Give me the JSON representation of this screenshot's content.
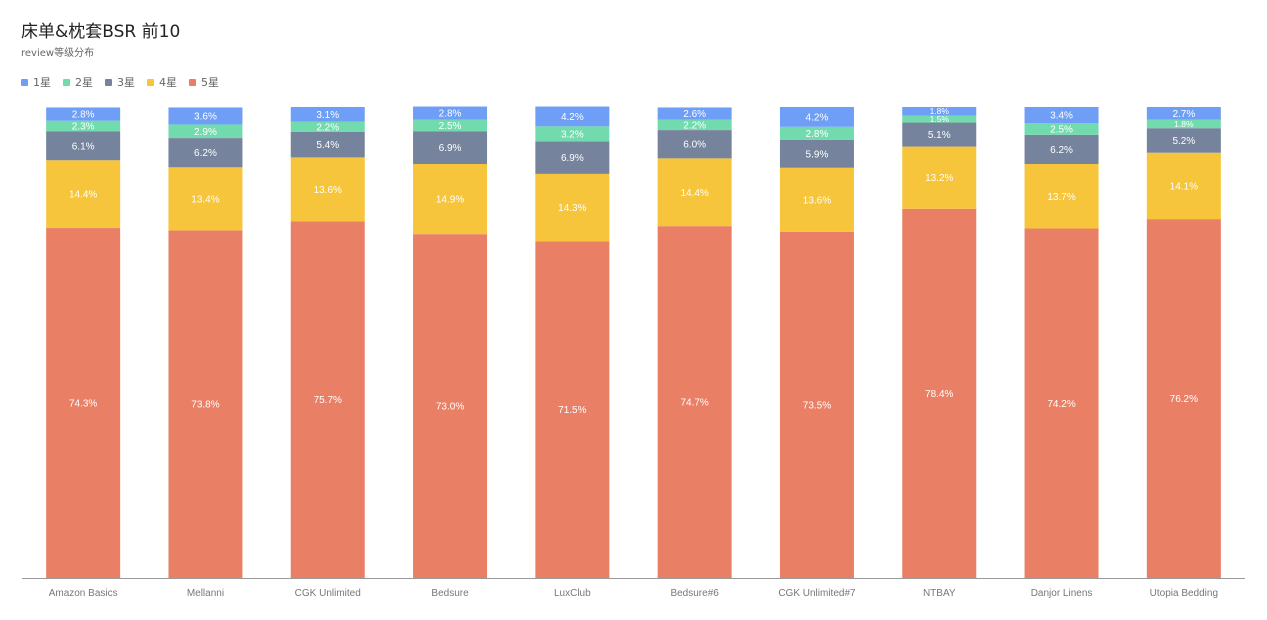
{
  "header": {
    "title": "床单&枕套BSR 前10",
    "subtitle": "review等级分布"
  },
  "legend": [
    {
      "label": "1星",
      "color": "#6e9ef6"
    },
    {
      "label": "2星",
      "color": "#72dbae"
    },
    {
      "label": "3星",
      "color": "#75839d"
    },
    {
      "label": "4星",
      "color": "#f6c53b"
    },
    {
      "label": "5星",
      "color": "#e98066"
    }
  ],
  "chart_data": {
    "type": "bar",
    "stacked": true,
    "title": "床单&枕套BSR 前10",
    "subtitle": "review等级分布",
    "xlabel": "",
    "ylabel": "",
    "ylim": [
      0,
      100
    ],
    "grid": false,
    "legend_position": "top-left",
    "categories": [
      "Amazon Basics",
      "Mellanni",
      "CGK Unlimited",
      "Bedsure",
      "LuxClub",
      "Bedsure#6",
      "CGK Unlimited#7",
      "NTBAY",
      "Danjor Linens",
      "Utopia Bedding"
    ],
    "series": [
      {
        "name": "5星",
        "color": "#e98066",
        "values": [
          74.3,
          73.8,
          75.7,
          73.0,
          71.5,
          74.7,
          73.5,
          78.4,
          74.2,
          76.2
        ],
        "labels": [
          "74.3%",
          "73.8%",
          "75.7%",
          "73.0%",
          "71.5%",
          "74.7%",
          "73.5%",
          "78.4%",
          "74.2%",
          "76.2%"
        ]
      },
      {
        "name": "4星",
        "color": "#f6c53b",
        "values": [
          14.4,
          13.4,
          13.6,
          14.9,
          14.3,
          14.4,
          13.6,
          13.2,
          13.7,
          14.1
        ],
        "labels": [
          "14.4%",
          "13.4%",
          "13.6%",
          "14.9%",
          "14.3%",
          "14.4%",
          "13.6%",
          "13.2%",
          "13.7%",
          "14.1%"
        ]
      },
      {
        "name": "3星",
        "color": "#75839d",
        "values": [
          6.1,
          6.2,
          5.4,
          6.9,
          6.9,
          6.0,
          5.9,
          5.1,
          6.2,
          5.2
        ],
        "labels": [
          "6.1%",
          "6.2%",
          "5.4%",
          "6.9%",
          "6.9%",
          "6.0%",
          "5.9%",
          "5.1%",
          "6.2%",
          "5.2%"
        ]
      },
      {
        "name": "2星",
        "color": "#72dbae",
        "values": [
          2.3,
          2.9,
          2.2,
          2.5,
          3.2,
          2.2,
          2.8,
          1.5,
          2.5,
          1.8
        ],
        "labels": [
          "2.3%",
          "2.9%",
          "2.2%",
          "2.5%",
          "3.2%",
          "2.2%",
          "2.8%",
          "1.5%",
          "2.5%",
          "1.8%"
        ]
      },
      {
        "name": "1星",
        "color": "#6e9ef6",
        "values": [
          2.8,
          3.6,
          3.1,
          2.8,
          4.2,
          2.6,
          4.2,
          1.8,
          3.4,
          2.7
        ],
        "labels": [
          "2.8%",
          "3.6%",
          "3.1%",
          "2.8%",
          "4.2%",
          "2.6%",
          "4.2%",
          "1.8%",
          "3.4%",
          "2.7%"
        ]
      }
    ]
  }
}
